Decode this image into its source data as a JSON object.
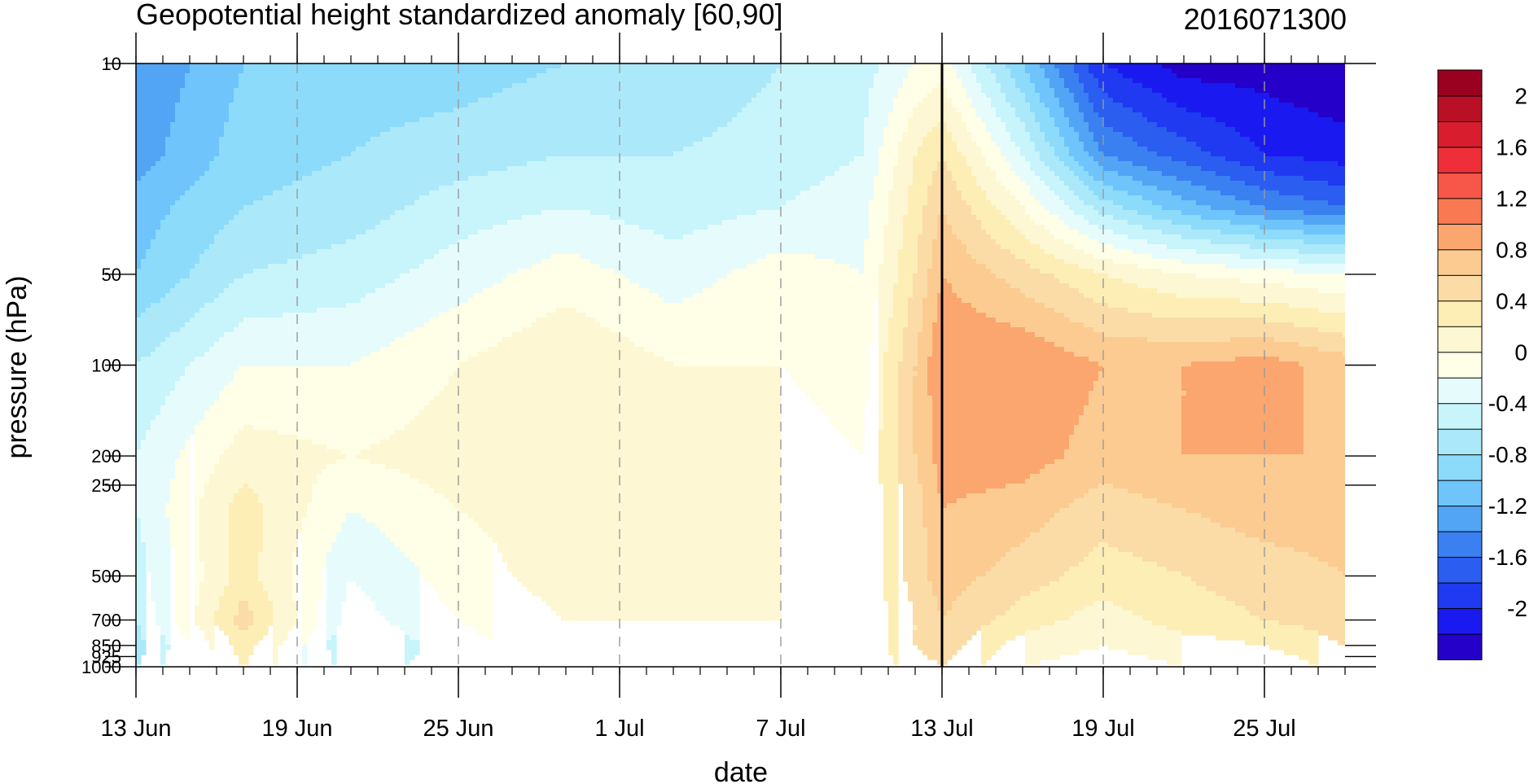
{
  "chart_data": {
    "type": "heatmap",
    "subtype": "filled-contour time-pressure cross-section",
    "title": "Geopotential height standardized anomaly [60,90]",
    "right_title": "2016071300",
    "xlabel": "date",
    "ylabel": "pressure (hPa)",
    "y_scale": "log",
    "ylim": [
      1000,
      10
    ],
    "x_range": [
      "2016-06-13",
      "2016-07-28"
    ],
    "x_ticks": [
      {
        "date": "2016-06-13",
        "label": "13 Jun"
      },
      {
        "date": "2016-06-19",
        "label": "19 Jun"
      },
      {
        "date": "2016-06-25",
        "label": "25 Jun"
      },
      {
        "date": "2016-07-01",
        "label": "1 Jul"
      },
      {
        "date": "2016-07-07",
        "label": "7 Jul"
      },
      {
        "date": "2016-07-13",
        "label": "13 Jul"
      },
      {
        "date": "2016-07-19",
        "label": "19 Jul"
      },
      {
        "date": "2016-07-25",
        "label": "25 Jul"
      }
    ],
    "y_ticks": [
      {
        "p": 10,
        "label": "10"
      },
      {
        "p": 50,
        "label": "50"
      },
      {
        "p": 100,
        "label": "100"
      },
      {
        "p": 200,
        "label": "200"
      },
      {
        "p": 250,
        "label": "250"
      },
      {
        "p": 500,
        "label": "500"
      },
      {
        "p": 700,
        "label": "700"
      },
      {
        "p": 850,
        "label": "850"
      },
      {
        "p": 925,
        "label": "925"
      },
      {
        "p": 1000,
        "label": "1000"
      }
    ],
    "analysis_date": "2016-07-13",
    "contour_levels": [
      -2.2,
      -2.0,
      -1.8,
      -1.6,
      -1.4,
      -1.2,
      -1.0,
      -0.8,
      -0.6,
      -0.4,
      -0.2,
      0,
      0.2,
      0.4,
      0.6,
      0.8,
      1.0,
      1.2,
      1.4,
      1.6,
      1.8,
      2.0,
      2.2
    ],
    "colorbar_labels": [
      "2",
      "1.6",
      "1.2",
      "0.8",
      "0.4",
      "0",
      "-0.4",
      "-0.8",
      "-1.2",
      "-1.6",
      "-2"
    ],
    "colors_low_to_high": [
      "#2500c8",
      "#1a1af0",
      "#1f3af0",
      "#2a5df0",
      "#3a80f0",
      "#52a4f5",
      "#6ec4fb",
      "#8cdbfb",
      "#abe9fa",
      "#c8f4fb",
      "#e6fcfc",
      "#fffee6",
      "#fdf7d3",
      "#fdeeb6",
      "#fbdcA6",
      "#fccb92",
      "#fba66e",
      "#f97a52",
      "#f65748",
      "#ee2f39",
      "#d81e2e",
      "#b91026",
      "#9a0020"
    ],
    "fields": {
      "times": [
        "2016-06-13",
        "2016-06-17",
        "2016-06-21",
        "2016-06-25",
        "2016-06-29",
        "2016-07-03",
        "2016-07-07",
        "2016-07-10",
        "2016-07-12",
        "2016-07-13",
        "2016-07-16",
        "2016-07-19",
        "2016-07-22",
        "2016-07-25",
        "2016-07-28"
      ],
      "pressures": [
        10,
        20,
        30,
        50,
        100,
        200,
        300,
        500,
        700,
        850,
        1000
      ],
      "values": [
        [
          -1.4,
          -1.3,
          -1.1,
          -1.0,
          -0.6,
          -0.4,
          -0.4,
          -0.5,
          -0.6,
          -0.7,
          -0.6
        ],
        [
          -1.0,
          -0.9,
          -0.8,
          -0.6,
          -0.2,
          0.1,
          0.3,
          0.3,
          0.5,
          0.3,
          0.2
        ],
        [
          -0.9,
          -0.8,
          -0.7,
          -0.5,
          -0.2,
          0.0,
          -0.2,
          -0.4,
          -0.5,
          -0.6,
          -0.5
        ],
        [
          -0.9,
          -0.7,
          -0.5,
          -0.3,
          0.0,
          0.1,
          0.0,
          -0.1,
          -0.2,
          -0.3,
          -0.3
        ],
        [
          -0.8,
          -0.6,
          -0.4,
          -0.1,
          0.2,
          0.2,
          0.1,
          0.1,
          0.0,
          0.0,
          0.0
        ],
        [
          -0.8,
          -0.6,
          -0.5,
          -0.3,
          0.0,
          0.1,
          0.1,
          0.0,
          0.0,
          -0.1,
          -0.1
        ],
        [
          -0.6,
          -0.5,
          -0.4,
          -0.1,
          0.0,
          0.1,
          0.1,
          0.0,
          0.0,
          0.0,
          0.0
        ],
        [
          -0.5,
          -0.4,
          -0.3,
          -0.2,
          -0.1,
          0.0,
          0.0,
          0.0,
          0.0,
          0.0,
          0.0
        ],
        [
          -0.2,
          0.2,
          0.3,
          0.4,
          0.6,
          0.6,
          0.5,
          0.5,
          0.4,
          0.4,
          0.3
        ],
        [
          -0.1,
          0.4,
          0.6,
          0.8,
          1.0,
          0.9,
          0.8,
          0.7,
          0.6,
          0.5,
          0.4
        ],
        [
          -1.0,
          -0.4,
          0.0,
          0.5,
          1.0,
          0.9,
          0.7,
          0.5,
          0.3,
          0.1,
          0.0
        ],
        [
          -2.0,
          -1.4,
          -0.7,
          0.2,
          0.8,
          0.7,
          0.5,
          0.3,
          0.1,
          0.0,
          -0.1
        ],
        [
          -2.3,
          -1.7,
          -1.1,
          0.0,
          0.8,
          0.8,
          0.6,
          0.4,
          0.3,
          0.1,
          0.0
        ],
        [
          -2.3,
          -2.0,
          -1.4,
          -0.1,
          0.9,
          0.8,
          0.7,
          0.5,
          0.4,
          0.2,
          0.0
        ],
        [
          -2.4,
          -2.1,
          -1.6,
          -0.2,
          0.7,
          0.8,
          0.7,
          0.6,
          0.5,
          0.4,
          0.3
        ]
      ]
    },
    "grid": "vertical dashed lines at x ticks",
    "legend": "colorbar right"
  }
}
